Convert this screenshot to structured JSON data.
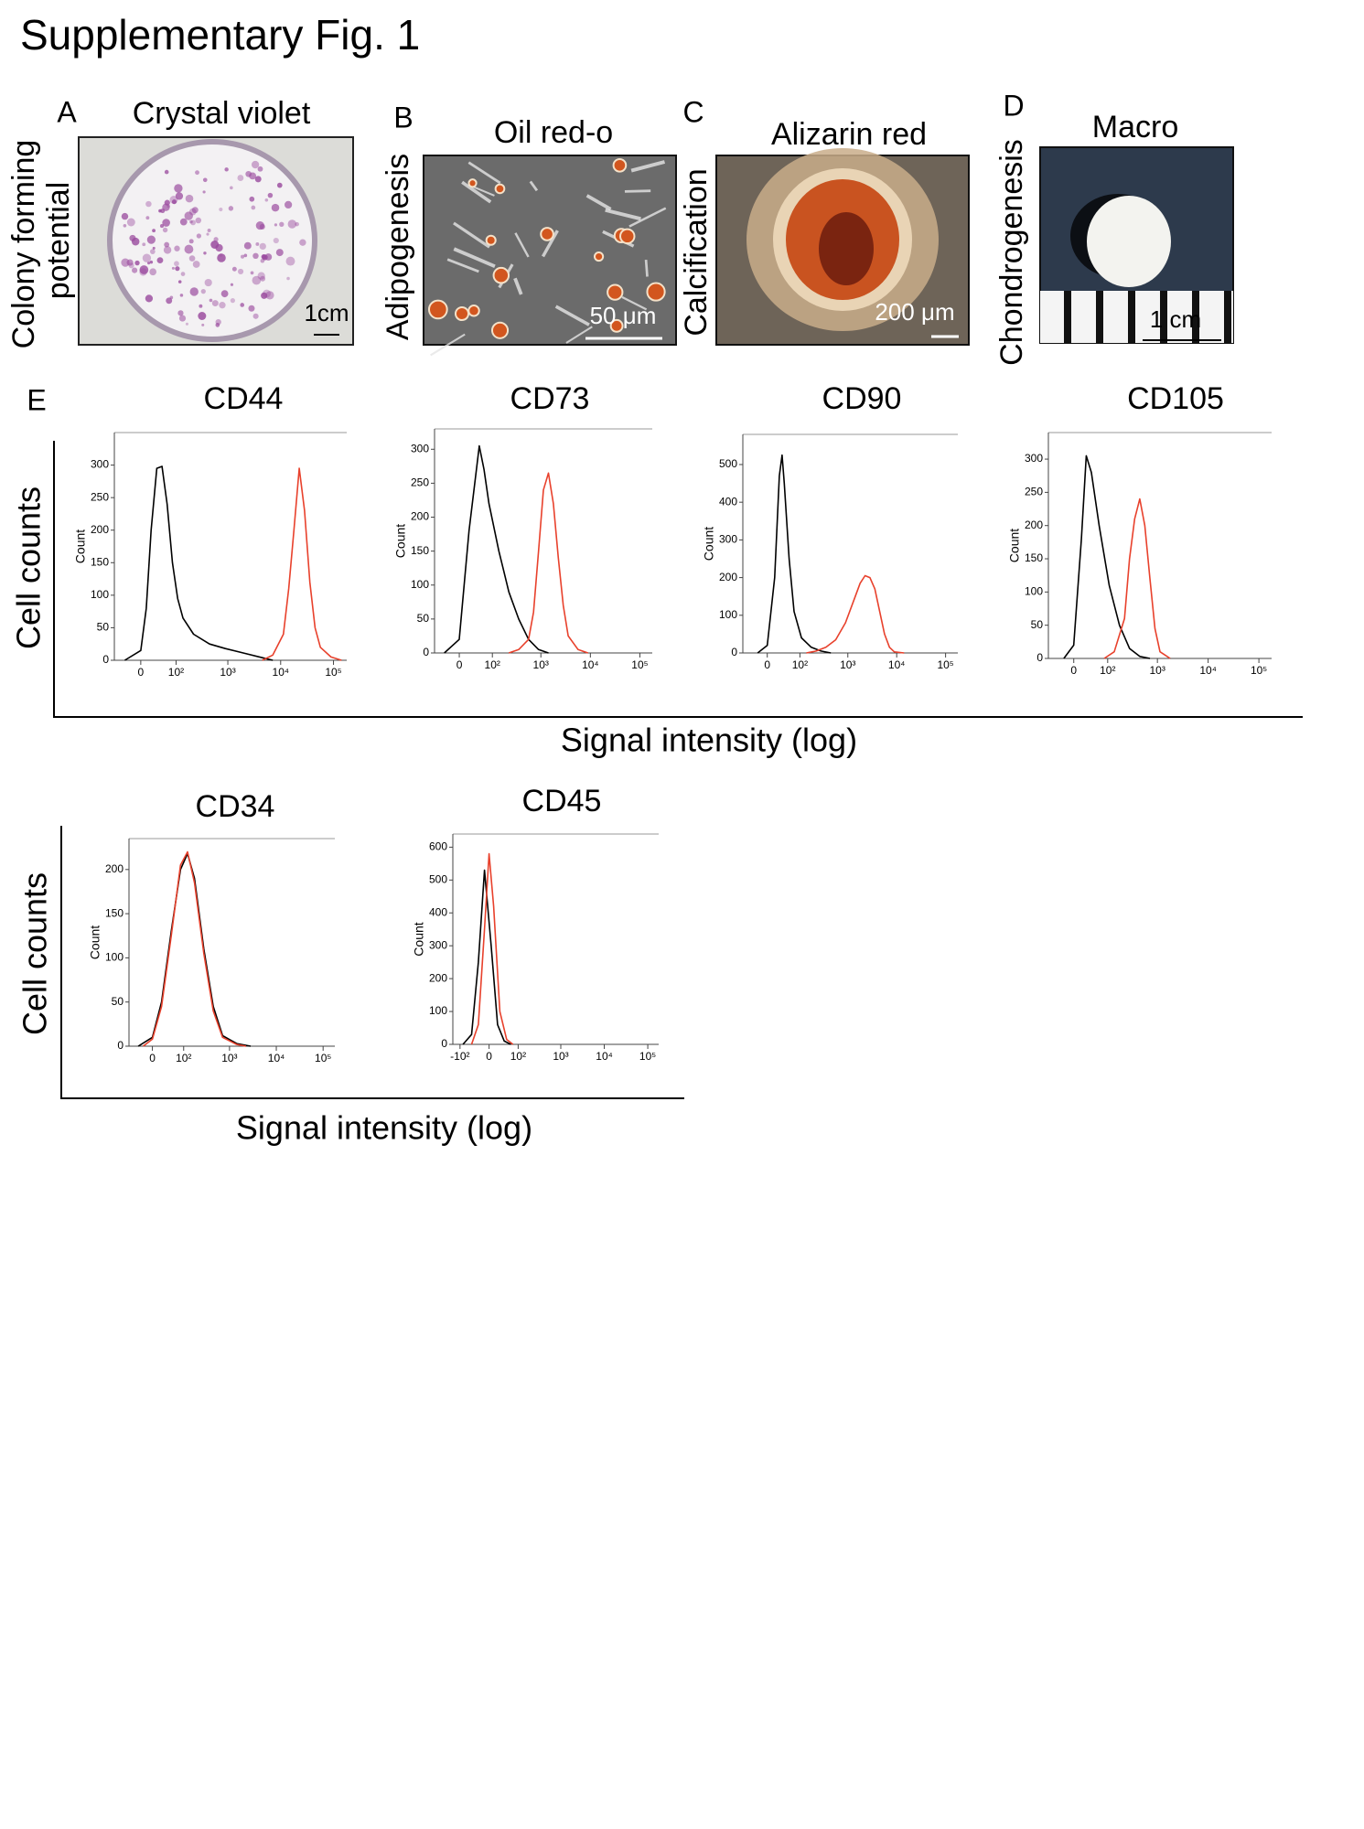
{
  "title": "Supplementary Fig. 1",
  "panels": [
    {
      "label": "A",
      "title": "Crystal violet",
      "ylabel": [
        "Colony forming",
        "potential"
      ],
      "scale_bar": "1cm"
    },
    {
      "label": "B",
      "title": "Oil red-o",
      "ylabel": "Adipogenesis",
      "scale_bar": "50 μm"
    },
    {
      "label": "C",
      "title": "Alizarin red",
      "ylabel": "Calcification",
      "scale_bar": "200 μm"
    },
    {
      "label": "D",
      "title": "Macro",
      "ylabel": "Chondrogenesis",
      "scale_bar": "1 cm"
    }
  ],
  "flow": {
    "label": "E",
    "groups": [
      {
        "ylabel": "Cell counts",
        "xlabel": "Signal intensity (log)"
      },
      {
        "ylabel": "Cell counts",
        "xlabel": "Signal intensity (log)"
      }
    ]
  },
  "chart_data": [
    {
      "type": "line",
      "title": "CD44",
      "ylabel": "Count",
      "xscale": "biexponential",
      "xlim": [
        -64,
        178000
      ],
      "xticks": [
        0,
        {
          "value": 100,
          "label": "10²"
        },
        {
          "value": 1000,
          "label": "10³"
        },
        {
          "value": 10000,
          "label": "10⁴"
        },
        {
          "value": 100000,
          "label": "10⁵"
        }
      ],
      "ylim": [
        0,
        350
      ],
      "yticks": [
        0,
        50,
        100,
        150,
        200,
        250,
        300
      ],
      "series": [
        {
          "color": "#000000",
          "x": [
            -34,
            0,
            11,
            21,
            34,
            48,
            64,
            84,
            108,
            138,
            223,
            448,
            896,
            2250,
            4489,
            7115
          ],
          "values": [
            0,
            15,
            80,
            200,
            295,
            298,
            240,
            150,
            95,
            65,
            40,
            25,
            18,
            10,
            4,
            0
          ]
        },
        {
          "color": "#e8412c",
          "x": [
            4489,
            7115,
            11276,
            14196,
            17870,
            22500,
            28325,
            35660,
            44890,
            56520,
            89570,
            141960
          ],
          "values": [
            0,
            8,
            40,
            110,
            200,
            295,
            230,
            120,
            50,
            20,
            5,
            0
          ]
        }
      ]
    },
    {
      "type": "line",
      "title": "CD73",
      "ylabel": "Count",
      "xscale": "biexponential",
      "xlim": [
        -64,
        178000
      ],
      "xticks": [
        0,
        {
          "value": 100,
          "label": "10²"
        },
        {
          "value": 1000,
          "label": "10³"
        },
        {
          "value": 10000,
          "label": "10⁴"
        },
        {
          "value": 100000,
          "label": "10⁵"
        }
      ],
      "ylim": [
        0,
        330
      ],
      "yticks": [
        0,
        50,
        100,
        150,
        200,
        250,
        300
      ],
      "series": [
        {
          "color": "#000000",
          "x": [
            -34,
            0,
            21,
            48,
            64,
            84,
            138,
            176,
            223,
            355,
            564,
            896,
            1420
          ],
          "values": [
            0,
            20,
            180,
            305,
            270,
            220,
            150,
            120,
            90,
            50,
            20,
            5,
            0
          ]
        },
        {
          "color": "#e8412c",
          "x": [
            223,
            355,
            564,
            711,
            896,
            1127,
            1420,
            1787,
            2250,
            2832,
            3566,
            5652,
            8957
          ],
          "values": [
            0,
            5,
            20,
            60,
            150,
            240,
            265,
            220,
            140,
            70,
            25,
            5,
            0
          ]
        }
      ]
    },
    {
      "type": "line",
      "title": "CD90",
      "ylabel": "Count",
      "xscale": "biexponential",
      "xlim": [
        -64,
        178000
      ],
      "xticks": [
        0,
        {
          "value": 100,
          "label": "10²"
        },
        {
          "value": 1000,
          "label": "10³"
        },
        {
          "value": 10000,
          "label": "10⁴"
        },
        {
          "value": 100000,
          "label": "10⁵"
        }
      ],
      "ylim": [
        0,
        580
      ],
      "yticks": [
        0,
        100,
        200,
        300,
        400,
        500
      ],
      "series": [
        {
          "color": "#000000",
          "x": [
            -21,
            0,
            16,
            27,
            34,
            40,
            55,
            73,
            108,
            176,
            281,
            448
          ],
          "values": [
            0,
            20,
            200,
            470,
            525,
            450,
            250,
            110,
            40,
            15,
            5,
            0
          ]
        },
        {
          "color": "#e8412c",
          "x": [
            138,
            223,
            355,
            564,
            896,
            1420,
            1787,
            2250,
            2832,
            3566,
            4489,
            5652,
            7115,
            8957,
            14196
          ],
          "values": [
            0,
            5,
            15,
            35,
            80,
            150,
            185,
            205,
            200,
            170,
            110,
            50,
            15,
            3,
            0
          ]
        }
      ]
    },
    {
      "type": "line",
      "title": "CD105",
      "ylabel": "Count",
      "xscale": "biexponential",
      "xlim": [
        -64,
        178000
      ],
      "xticks": [
        0,
        {
          "value": 100,
          "label": "10²"
        },
        {
          "value": 1000,
          "label": "10³"
        },
        {
          "value": 10000,
          "label": "10⁴"
        },
        {
          "value": 100000,
          "label": "10⁵"
        }
      ],
      "ylim": [
        0,
        340
      ],
      "yticks": [
        0,
        50,
        100,
        150,
        200,
        250,
        300
      ],
      "series": [
        {
          "color": "#000000",
          "x": [
            -21,
            0,
            16,
            27,
            40,
            64,
            108,
            176,
            281,
            448,
            711
          ],
          "values": [
            0,
            20,
            180,
            305,
            280,
            200,
            110,
            50,
            15,
            3,
            0
          ]
        },
        {
          "color": "#e8412c",
          "x": [
            84,
            138,
            223,
            281,
            355,
            448,
            564,
            711,
            896,
            1127,
            1787
          ],
          "values": [
            0,
            10,
            60,
            150,
            210,
            240,
            200,
            120,
            45,
            10,
            0
          ]
        }
      ]
    },
    {
      "type": "line",
      "title": "CD34",
      "ylabel": "Count",
      "xscale": "biexponential",
      "xlim": [
        -64,
        178000
      ],
      "xticks": [
        0,
        {
          "value": 100,
          "label": "10²"
        },
        {
          "value": 1000,
          "label": "10³"
        },
        {
          "value": 10000,
          "label": "10⁴"
        },
        {
          "value": 100000,
          "label": "10⁵"
        }
      ],
      "ylim": [
        0,
        235
      ],
      "yticks": [
        0,
        50,
        100,
        150,
        200
      ],
      "series": [
        {
          "color": "#000000",
          "x": [
            -34,
            0,
            21,
            48,
            84,
            123,
            176,
            281,
            448,
            711,
            1420,
            2832
          ],
          "values": [
            0,
            10,
            50,
            130,
            200,
            218,
            190,
            110,
            45,
            12,
            3,
            0
          ]
        },
        {
          "color": "#e8412c",
          "x": [
            -21,
            0,
            21,
            48,
            84,
            123,
            176,
            281,
            448,
            711,
            1420,
            2250
          ],
          "values": [
            0,
            8,
            45,
            125,
            205,
            220,
            185,
            105,
            40,
            10,
            2,
            0
          ]
        }
      ]
    },
    {
      "type": "line",
      "title": "CD45",
      "ylabel": "Count",
      "xscale": "biexponential",
      "xlim": [
        -150,
        178000
      ],
      "xticks": [
        {
          "value": -100,
          "label": "-10²"
        },
        0,
        {
          "value": 100,
          "label": "10²"
        },
        {
          "value": 1000,
          "label": "10³"
        },
        {
          "value": 10000,
          "label": "10⁴"
        },
        {
          "value": 100000,
          "label": "10⁵"
        }
      ],
      "ylim": [
        0,
        640
      ],
      "yticks": [
        0,
        100,
        200,
        300,
        400,
        500,
        600
      ],
      "series": [
        {
          "color": "#000000",
          "x": [
            -84,
            -48,
            -27,
            -11,
            5,
            21,
            40,
            64
          ],
          "values": [
            0,
            30,
            250,
            530,
            300,
            60,
            10,
            0
          ]
        },
        {
          "color": "#e8412c",
          "x": [
            -48,
            -27,
            -11,
            0,
            11,
            27,
            48,
            73
          ],
          "values": [
            0,
            60,
            350,
            580,
            420,
            100,
            15,
            0
          ]
        }
      ]
    }
  ]
}
